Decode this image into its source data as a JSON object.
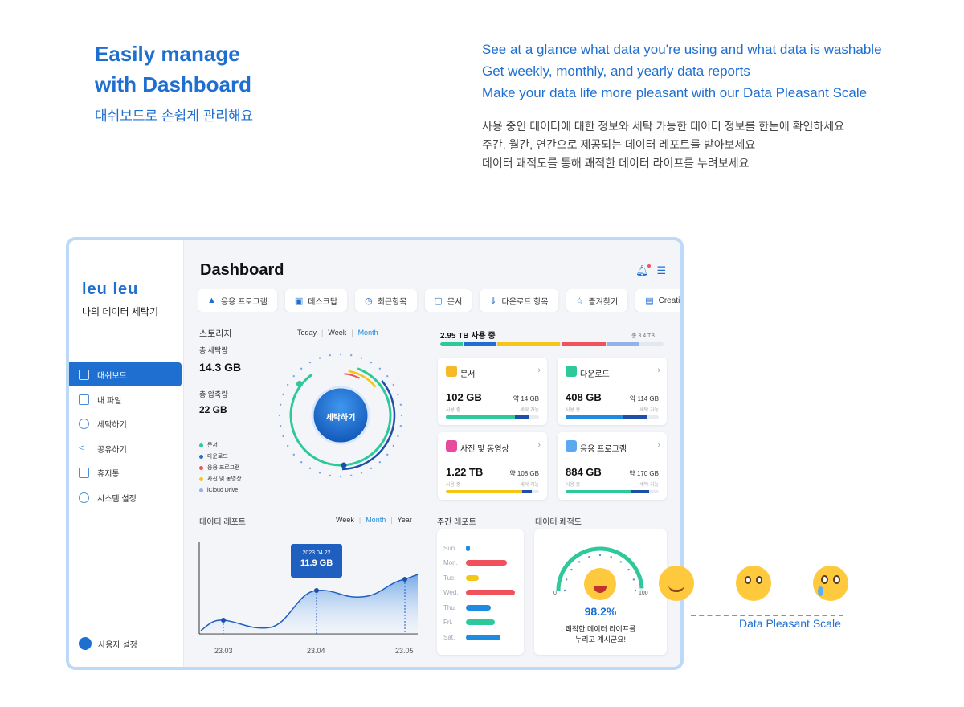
{
  "hero": {
    "title_line1": "Easily manage",
    "title_line2": "with Dashboard",
    "subtitle": "대쉬보드로 손쉽게 관리해요",
    "en_lines": [
      "See at a glance what data you're using and what data is washable",
      "Get weekly, monthly, and yearly data reports",
      "Make your data life more pleasant with our Data Pleasant Scale"
    ],
    "ko_lines": [
      "사용 중인 데이터에 대한 정보와 세탁 가능한 데이터 정보를 한눈에 확인하세요",
      "주간, 월간, 연간으로 제공되는 데이터 레포트를 받아보세요",
      "데이터 쾌적도를 통해 쾌적한 데이터 라이프를 누려보세요"
    ]
  },
  "sidebar": {
    "logo": "leu leu",
    "app_name": "나의 데이터 세탁기",
    "items": [
      {
        "label": "대쉬보드",
        "icon": "dashboard-icon",
        "active": true
      },
      {
        "label": "내 파일",
        "icon": "folder-icon",
        "active": false
      },
      {
        "label": "세탁하기",
        "icon": "wash-icon",
        "active": false
      },
      {
        "label": "공유하기",
        "icon": "share-icon",
        "active": false
      },
      {
        "label": "휴지통",
        "icon": "trash-icon",
        "active": false
      },
      {
        "label": "시스템 설정",
        "icon": "gear-icon",
        "active": false
      }
    ],
    "user_label": "사용자 설정"
  },
  "header": {
    "title": "Dashboard"
  },
  "tabs": [
    "응용 프로그램",
    "데스크탑",
    "최근항목",
    "문서",
    "다운로드 항목",
    "즐겨찾기",
    "Creati"
  ],
  "storage": {
    "title": "스토리지",
    "ranges": [
      "Today",
      "Week",
      "Month"
    ],
    "active_range": "Month",
    "total_washed_label": "총 세탁량",
    "total_washed": "14.3 GB",
    "total_compressed_label": "총 압축량",
    "total_compressed": "22 GB",
    "wash_button": "세탁하기",
    "legend": [
      {
        "label": "문서",
        "color": "#2ec99a"
      },
      {
        "label": "다운로드",
        "color": "#1f6fd1"
      },
      {
        "label": "응용 프로그램",
        "color": "#f0525b"
      },
      {
        "label": "사진 및 동영상",
        "color": "#f5c518"
      },
      {
        "label": "iCloud Drive",
        "color": "#8fb3ea"
      }
    ]
  },
  "usage": {
    "used_label": "2.95 TB 사용 중",
    "total_label": "총 3.4 TB",
    "segments": [
      {
        "name": "문서",
        "fraction": 0.1,
        "color": "#2ec99a"
      },
      {
        "name": "다운로드",
        "fraction": 0.14,
        "color": "#1f6fd1"
      },
      {
        "name": "사진 및 동영상",
        "fraction": 0.28,
        "color": "#f5c518"
      },
      {
        "name": "응용 프로그램",
        "fraction": 0.2,
        "color": "#f0525b"
      },
      {
        "name": "iCloud Drive",
        "fraction": 0.14,
        "color": "#8fb3ea"
      }
    ]
  },
  "file_cards": [
    {
      "title": "문서",
      "icon": "document-icon",
      "size": "102 GB",
      "approx": "약 14 GB",
      "used_label": "사용 중",
      "wash_label": "세탁 가능",
      "color": "#2ec99a",
      "used_fraction": 0.74,
      "wash_fraction": 0.16
    },
    {
      "title": "다운로드",
      "icon": "download-icon",
      "size": "408 GB",
      "approx": "약 114 GB",
      "used_label": "사용 중",
      "wash_label": "세탁 가능",
      "color": "#1f8be0",
      "used_fraction": 0.62,
      "wash_fraction": 0.26
    },
    {
      "title": "사진 및 동영상",
      "icon": "photo-icon",
      "size": "1.22 TB",
      "approx": "약 108 GB",
      "used_label": "사용 중",
      "wash_label": "세탁 가능",
      "color": "#f5c518",
      "used_fraction": 0.82,
      "wash_fraction": 0.1
    },
    {
      "title": "응용 프로그램",
      "icon": "app-icon",
      "size": "884 GB",
      "approx": "약 170 GB",
      "used_label": "사용 중",
      "wash_label": "세탁 가능",
      "color": "#2ec99a",
      "used_fraction": 0.7,
      "wash_fraction": 0.2
    }
  ],
  "data_report": {
    "title": "데이터 레포트",
    "ranges": [
      "Week",
      "Month",
      "Year"
    ],
    "active_range": "Month",
    "tooltip_date": "2023.04.22",
    "tooltip_value": "11.9 GB",
    "x_labels": [
      "23.03",
      "23.04",
      "23.05"
    ]
  },
  "weekly_report": {
    "title": "주간 레포트",
    "days": [
      {
        "day": "Sun.",
        "value": 0.08,
        "color": "#1f8be0"
      },
      {
        "day": "Mon.",
        "value": 0.82,
        "color": "#f0525b"
      },
      {
        "day": "Tue.",
        "value": 0.25,
        "color": "#f5c518"
      },
      {
        "day": "Wed.",
        "value": 0.98,
        "color": "#f0525b"
      },
      {
        "day": "Thu.",
        "value": 0.5,
        "color": "#1f8be0"
      },
      {
        "day": "Fri.",
        "value": 0.58,
        "color": "#2ec99a"
      },
      {
        "day": "Sat.",
        "value": 0.7,
        "color": "#1f8be0"
      }
    ]
  },
  "pleasant": {
    "title": "데이터 쾌적도",
    "min": "0",
    "max": "100",
    "value": "98.2%",
    "message_line1": "쾌적한 데이터 라이프를",
    "message_line2": "누리고 계시군요!",
    "level": 0.982
  },
  "scale_caption": "Data Pleasant Scale"
}
